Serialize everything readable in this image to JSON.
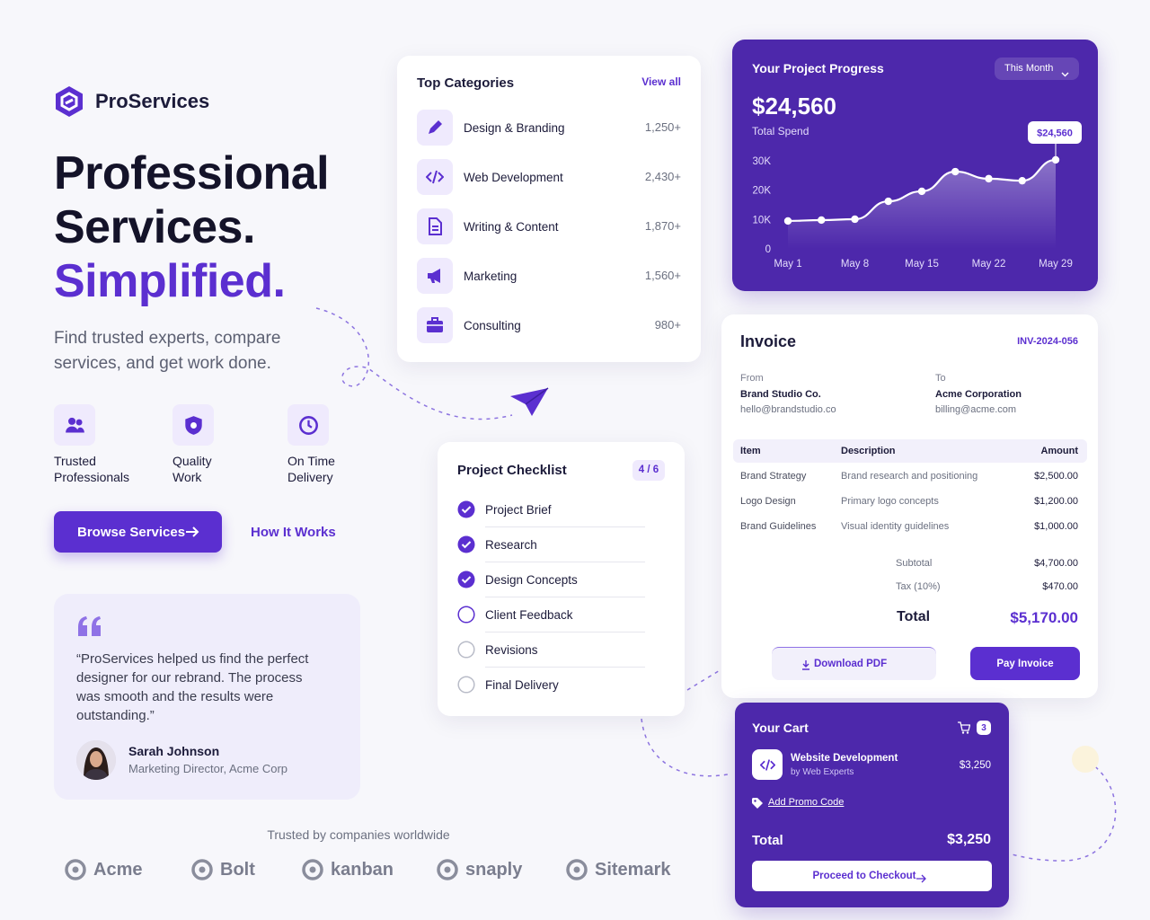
{
  "brand": {
    "name": "ProServices"
  },
  "hero": {
    "lines": [
      "Professional",
      "Services."
    ],
    "highlight": "Simplified.",
    "subtitle": "Find trusted experts, compare services, and get work done."
  },
  "features": [
    {
      "label": "Trusted Professionals"
    },
    {
      "label": "Quality Work"
    },
    {
      "label": "On Time Delivery"
    }
  ],
  "actions": {
    "primary": "Browse Services",
    "secondary": "How It Works"
  },
  "testimonial": {
    "quote": "“ProServices helped us find the perfect designer for our rebrand. The process was smooth and the results were outstanding.”",
    "name": "Sarah Johnson",
    "role": "Marketing Director, Acme Corp"
  },
  "trusted": {
    "label": "Trusted by companies worldwide",
    "logos": [
      "Acme",
      "Bolt",
      "kanban",
      "snaply",
      "Sitemark"
    ]
  },
  "categories": {
    "title": "Top Categories",
    "link": "View all",
    "items": [
      {
        "name": "Design & Branding",
        "count": "1,250+"
      },
      {
        "name": "Web Development",
        "count": "2,430+"
      },
      {
        "name": "Writing & Content",
        "count": "1,870+"
      },
      {
        "name": "Marketing",
        "count": "1,560+"
      },
      {
        "name": "Consulting",
        "count": "980+"
      }
    ]
  },
  "checklist": {
    "title": "Project Checklist",
    "progress": "4 / 6",
    "items": [
      {
        "label": "Project Brief",
        "status": "done"
      },
      {
        "label": "Research",
        "status": "done"
      },
      {
        "label": "Design Concepts",
        "status": "done"
      },
      {
        "label": "Client Feedback",
        "status": "active"
      },
      {
        "label": "Revisions",
        "status": "todo"
      },
      {
        "label": "Final Delivery",
        "status": "todo"
      }
    ]
  },
  "chart_data": {
    "type": "area",
    "title": "Your Project Progress",
    "period": "This Month",
    "total": "$24,560",
    "total_label": "Total Spend",
    "annotation": "$24,560",
    "categories": [
      "May 1",
      null,
      "May 8",
      null,
      "May 15",
      null,
      "May 22",
      null,
      "May 29"
    ],
    "values": [
      9500,
      9800,
      10100,
      16200,
      19600,
      26300,
      23900,
      23200,
      30300
    ],
    "ylim": [
      0,
      32000
    ],
    "yticks": [
      0,
      {
        "value": 10000,
        "label": "10K"
      },
      {
        "value": 20000,
        "label": "20K"
      },
      {
        "value": 30000,
        "label": "30K"
      }
    ],
    "color": "#ffffff"
  },
  "invoice": {
    "title": "Invoice",
    "number": "INV-2024-056",
    "from": {
      "label": "From",
      "name": "Brand Studio Co.",
      "email": "hello@brandstudio.co"
    },
    "to": {
      "label": "To",
      "name": "Acme Corporation",
      "email": "billing@acme.com"
    },
    "columns": [
      "Item",
      "Description",
      "Amount"
    ],
    "rows": [
      [
        "Brand Strategy",
        "Brand research and positioning",
        "$2,500.00"
      ],
      [
        "Logo Design",
        "Primary logo concepts",
        "$1,200.00"
      ],
      [
        "Brand Guidelines",
        "Visual identity guidelines",
        "$1,000.00"
      ]
    ],
    "subtotal": {
      "label": "Subtotal",
      "value": "$4,700.00"
    },
    "tax": {
      "label": "Tax (10%)",
      "value": "$470.00"
    },
    "total": {
      "label": "Total",
      "value": "$5,170.00"
    },
    "download": "Download PDF",
    "pay": "Pay Invoice"
  },
  "cart": {
    "title": "Your Cart",
    "count": 3,
    "item": {
      "name": "Website Development",
      "vendor": "by Web Experts",
      "price": "$3,250"
    },
    "promo": "Add Promo Code",
    "total_label": "Total",
    "total": "$3,250",
    "checkout": "Proceed to Checkout"
  }
}
